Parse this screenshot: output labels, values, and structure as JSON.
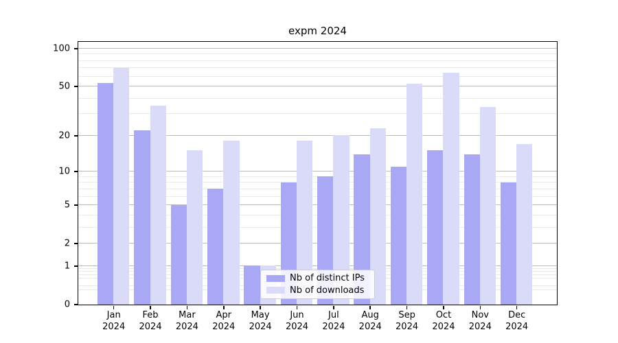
{
  "chart_data": {
    "type": "bar",
    "title": "expm 2024",
    "categories": [
      "Jan 2024",
      "Feb 2024",
      "Mar 2024",
      "Apr 2024",
      "May 2024",
      "Jun 2024",
      "Jul 2024",
      "Aug 2024",
      "Sep 2024",
      "Oct 2024",
      "Nov 2024",
      "Dec 2024"
    ],
    "series": [
      {
        "name": "Nb of distinct IPs",
        "color": "#a8a8f5",
        "values": [
          53,
          22,
          5,
          7,
          1,
          8,
          9,
          14,
          11,
          15,
          14,
          8
        ]
      },
      {
        "name": "Nb of downloads",
        "color": "#dadaf9",
        "values": [
          70,
          35,
          15,
          18,
          1,
          18,
          20,
          23,
          52,
          64,
          34,
          17
        ]
      }
    ],
    "xlabel": "",
    "ylabel": "",
    "yscale": "log1p",
    "ylim": [
      0,
      113
    ],
    "y_major_ticks": [
      0,
      1,
      2,
      5,
      10,
      20,
      50,
      100
    ],
    "y_minor_gridlines": [
      0.3,
      0.4,
      0.6,
      0.7,
      0.8,
      0.9,
      3,
      4,
      6,
      7,
      8,
      9,
      30,
      40,
      60,
      70,
      80,
      90
    ],
    "grid": true,
    "legend_position": "inside lower center-right"
  }
}
